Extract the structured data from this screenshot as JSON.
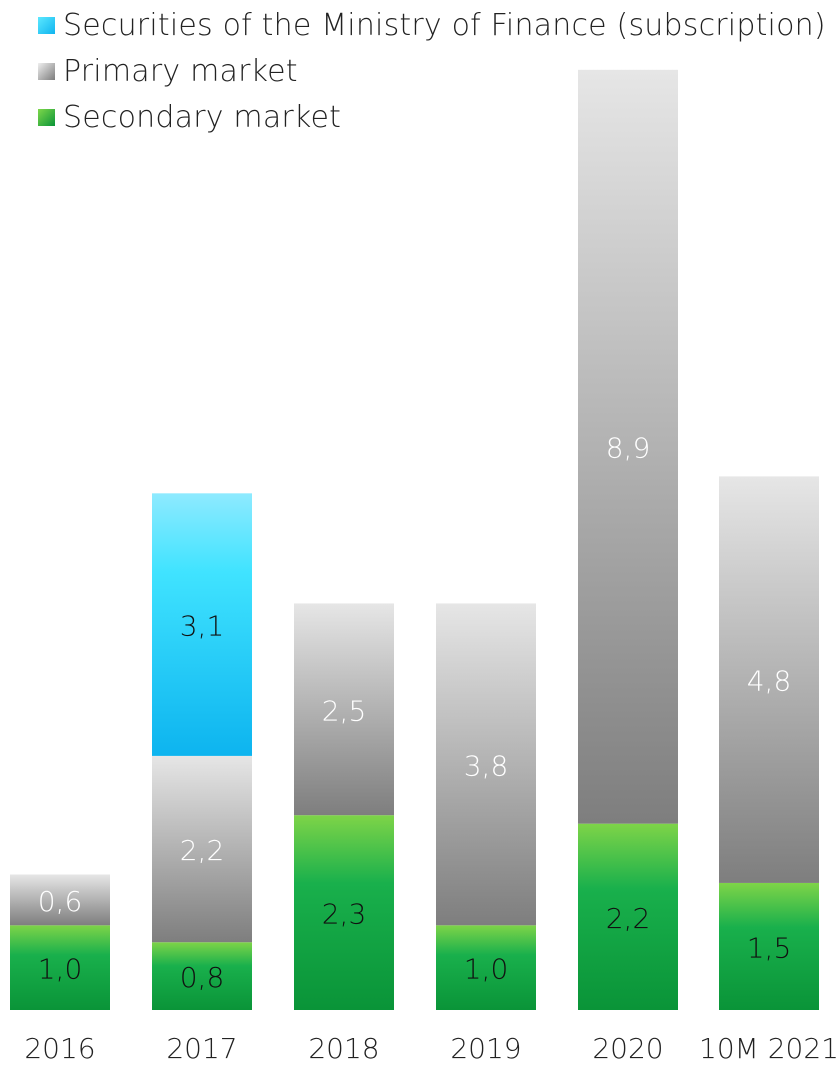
{
  "chart_data": {
    "type": "bar",
    "stacked": true,
    "categories": [
      "2016",
      "2017",
      "2018",
      "2019",
      "2020",
      "10M 2021"
    ],
    "series": [
      {
        "name": "Secondary market",
        "values": [
          1.0,
          0.8,
          2.3,
          1.0,
          2.2,
          1.5
        ],
        "labels": [
          "1,0",
          "0,8",
          "2,3",
          "1,0",
          "2,2",
          "1,5"
        ],
        "color": "#1aaa4a"
      },
      {
        "name": "Primary market",
        "values": [
          0.6,
          2.2,
          2.5,
          3.8,
          8.9,
          4.8
        ],
        "labels": [
          "0,6",
          "2,2",
          "2,5",
          "3,8",
          "8,9",
          "4,8"
        ],
        "color": "#a6a6a6"
      },
      {
        "name": "Securities of the Ministry of Finance (subscription)",
        "values": [
          null,
          3.1,
          null,
          null,
          null,
          null
        ],
        "labels": [
          "",
          "3,1",
          "",
          "",
          "",
          ""
        ],
        "color": "#22c6f2"
      }
    ],
    "legend_order": [
      "Securities of the Ministry of Finance (subscription)",
      "Primary market",
      "Secondary market"
    ],
    "legend_position": "top-left",
    "grid": false,
    "axes_visible": false
  }
}
